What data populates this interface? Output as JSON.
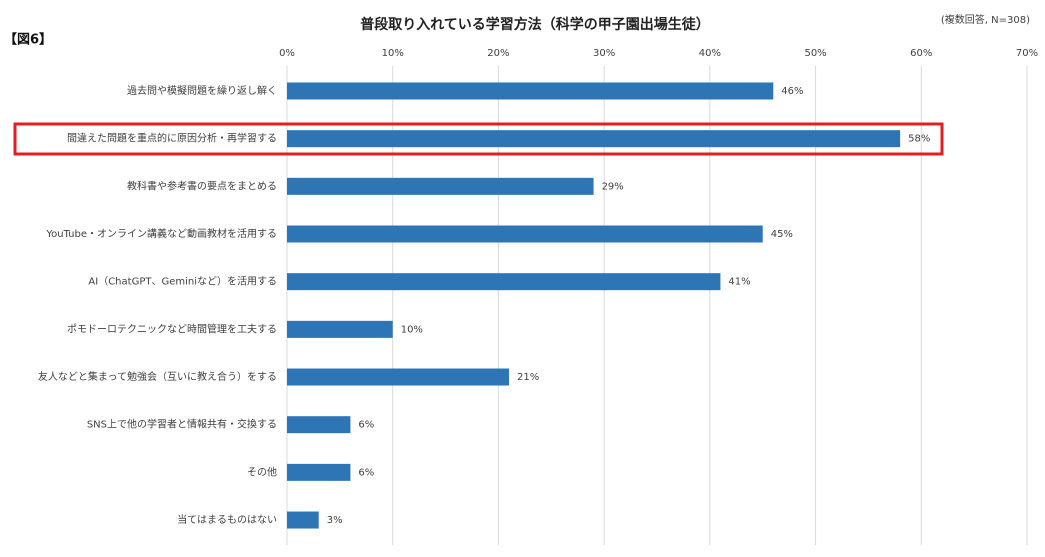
{
  "chart_data": {
    "type": "bar",
    "orientation": "horizontal",
    "title": "普段取り入れている学習方法（科学の甲子園出場生徒）",
    "note": "(複数回答, N=308)",
    "figure_label": "【図6】",
    "categories": [
      "過去問や模擬問題を繰り返し解く",
      "間違えた問題を重点的に原因分析・再学習する",
      "教科書や参考書の要点をまとめる",
      "YouTube・オンライン講義など動画教材を活用する",
      "AI（ChatGPT、Geminiなど）を活用する",
      "ポモドーロテクニックなど時間管理を工夫する",
      "友人などと集まって勉強会（互いに教え合う）をする",
      "SNS上で他の学習者と情報共有・交換する",
      "その他",
      "当てはまるものはない"
    ],
    "values": [
      46,
      58,
      29,
      45,
      41,
      10,
      21,
      6,
      6,
      3
    ],
    "value_labels": [
      "46%",
      "58%",
      "29%",
      "45%",
      "41%",
      "10%",
      "21%",
      "6%",
      "6%",
      "3%"
    ],
    "color": "#2e75b6",
    "xlim": [
      0,
      70
    ],
    "xticks": [
      {
        "value": 0,
        "label": "0%"
      },
      {
        "value": 10,
        "label": "10%"
      },
      {
        "value": 20,
        "label": "20%"
      },
      {
        "value": 30,
        "label": "30%"
      },
      {
        "value": 40,
        "label": "40%"
      },
      {
        "value": 50,
        "label": "50%"
      },
      {
        "value": 60,
        "label": "60%"
      },
      {
        "value": 70,
        "label": "70%"
      }
    ],
    "grid": true
  }
}
